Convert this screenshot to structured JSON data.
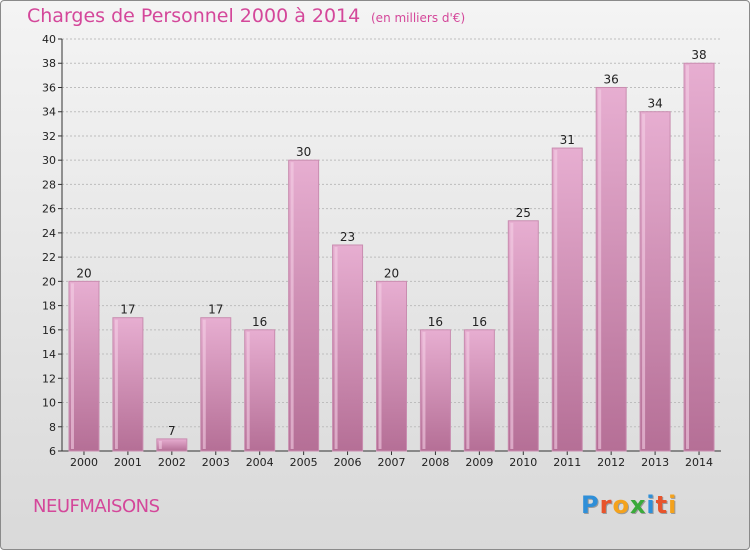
{
  "header": {
    "title": "Charges de Personnel 2000 à 2014",
    "subtitle": "(en milliers d'€)"
  },
  "footer": {
    "commune": "NEUFMAISONS",
    "logo": "Proxiti"
  },
  "colors": {
    "bar_light": "#e7aed1",
    "bar_dark": "#b56f96",
    "title": "#d4479a"
  },
  "chart_data": {
    "type": "bar",
    "categories": [
      "2000",
      "2001",
      "2002",
      "2003",
      "2004",
      "2005",
      "2006",
      "2007",
      "2008",
      "2009",
      "2010",
      "2011",
      "2012",
      "2013",
      "2014"
    ],
    "values": [
      20,
      17,
      7,
      17,
      16,
      30,
      23,
      20,
      16,
      16,
      25,
      31,
      36,
      34,
      38
    ],
    "title": "Charges de Personnel 2000 à 2014",
    "subtitle": "(en milliers d'€)",
    "xlabel": "",
    "ylabel": "",
    "ylim": [
      6,
      40
    ],
    "yticks": [
      6,
      8,
      10,
      12,
      14,
      16,
      18,
      20,
      22,
      24,
      26,
      28,
      30,
      32,
      34,
      36,
      38,
      40
    ],
    "grid": true
  }
}
